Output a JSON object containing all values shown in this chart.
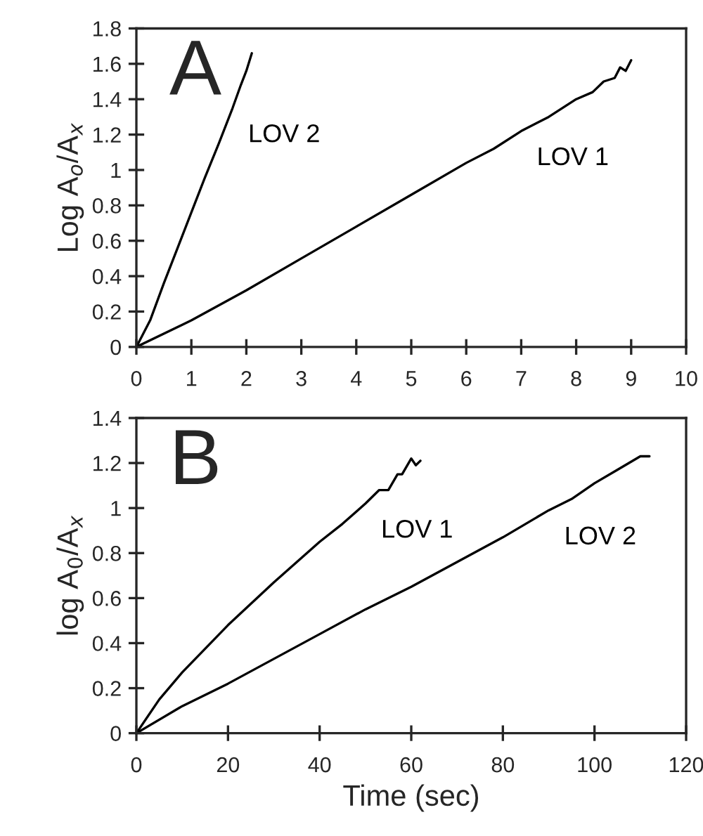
{
  "chart_data": [
    {
      "type": "line",
      "ylabel": "Log A$_{o}$/A$_{x}$",
      "annotations": [
        "A"
      ],
      "xlim": [
        0,
        10
      ],
      "ylim": [
        0,
        1.8
      ],
      "xticks": [
        0,
        1,
        2,
        3,
        4,
        5,
        6,
        7,
        8,
        9,
        10
      ],
      "yticks": [
        0,
        0.2,
        0.4,
        0.6,
        0.8,
        1,
        1.2,
        1.4,
        1.6,
        1.8
      ],
      "grid": false,
      "legend": false,
      "marker": "none",
      "line_style": "solid",
      "series": [
        {
          "name": "LOV 2",
          "color": "#000000",
          "x": [
            0,
            0.25,
            0.5,
            0.75,
            1.0,
            1.25,
            1.5,
            1.75,
            1.9,
            2.0,
            2.1
          ],
          "values": [
            0,
            0.15,
            0.36,
            0.56,
            0.76,
            0.96,
            1.15,
            1.35,
            1.48,
            1.56,
            1.66
          ]
        },
        {
          "name": "LOV 1",
          "color": "#000000",
          "x": [
            0,
            1,
            2,
            3,
            4,
            5,
            6,
            6.5,
            7,
            7.5,
            8,
            8.3,
            8.5,
            8.7,
            8.8,
            8.9,
            9.0
          ],
          "values": [
            0,
            0.15,
            0.32,
            0.5,
            0.68,
            0.86,
            1.04,
            1.12,
            1.22,
            1.3,
            1.4,
            1.44,
            1.5,
            1.52,
            1.58,
            1.56,
            1.62
          ]
        }
      ]
    },
    {
      "type": "line",
      "xlabel": "Time (sec)",
      "ylabel": "log A$_{0}$/A$_{x}$",
      "annotations": [
        "B"
      ],
      "xlim": [
        0,
        120
      ],
      "ylim": [
        0,
        1.4
      ],
      "xticks": [
        0,
        20,
        40,
        60,
        80,
        100,
        120
      ],
      "yticks": [
        0,
        0.2,
        0.4,
        0.6,
        0.8,
        1,
        1.2,
        1.4
      ],
      "grid": false,
      "legend": false,
      "marker": "none",
      "line_style": "solid",
      "series": [
        {
          "name": "LOV 1",
          "color": "#000000",
          "x": [
            0,
            5,
            10,
            20,
            30,
            40,
            45,
            50,
            53,
            55,
            57,
            58,
            60,
            61,
            62
          ],
          "values": [
            0,
            0.15,
            0.27,
            0.48,
            0.67,
            0.85,
            0.93,
            1.02,
            1.08,
            1.08,
            1.15,
            1.15,
            1.22,
            1.19,
            1.21
          ]
        },
        {
          "name": "LOV 2",
          "color": "#000000",
          "x": [
            0,
            10,
            20,
            30,
            40,
            50,
            60,
            70,
            80,
            90,
            95,
            100,
            105,
            110,
            112
          ],
          "values": [
            0,
            0.12,
            0.22,
            0.33,
            0.44,
            0.55,
            0.65,
            0.76,
            0.87,
            0.99,
            1.04,
            1.11,
            1.17,
            1.23,
            1.23
          ]
        }
      ]
    }
  ]
}
